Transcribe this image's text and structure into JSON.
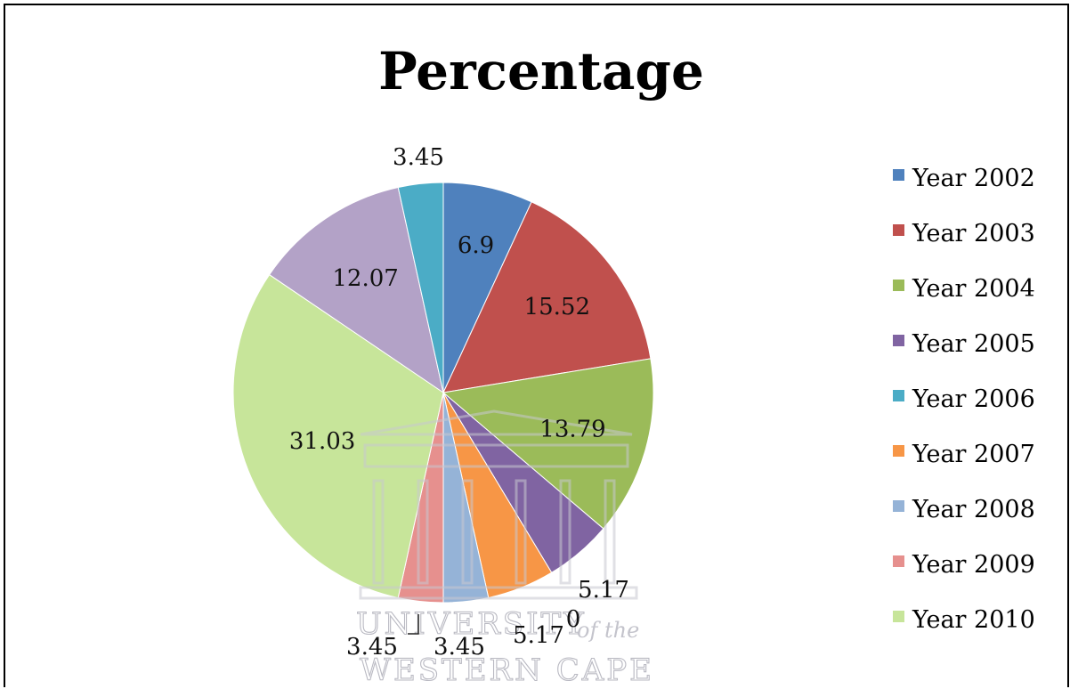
{
  "chart_data": {
    "type": "pie",
    "title": "Percentage",
    "categories": [
      "Year 2002",
      "Year 2003",
      "Year 2004",
      "Year 2005",
      "Year 2006",
      "Year 2007",
      "Year 2008",
      "Year 2009",
      "Year 2010"
    ],
    "slice_order": [
      "Year 2002",
      "Year 2003",
      "Year 2004",
      "Year 2005",
      "Year 2007",
      "Year 2008",
      "Year 2009",
      "Year 2010",
      "Year 2005",
      "Year 2006"
    ],
    "slice_values": [
      6.9,
      15.52,
      13.79,
      5.17,
      5.17,
      3.45,
      3.45,
      31.03,
      12.07,
      3.45
    ],
    "zero_label": "0",
    "legend_placement": "right",
    "colors": {
      "Year 2002": "#4f81bd",
      "Year 2003": "#c0504d",
      "Year 2004": "#9bbb59",
      "Year 2005": "#8064a2",
      "Year 2006": "#4bacc6",
      "Year 2007": "#f79646",
      "Year 2008": "#95b3d7",
      "Year 2009": "#e6908e",
      "Year 2010": "#c7e59a",
      "Year 2005b": "#b3a2c7",
      "Year 2006b": "#8dd8ea"
    }
  },
  "watermark": {
    "line1": "UNIVERSITY",
    "line1b": "of the",
    "line2": "WESTERN CAPE"
  }
}
